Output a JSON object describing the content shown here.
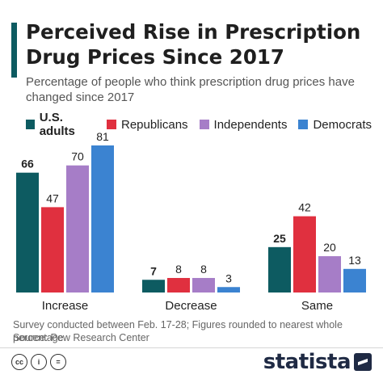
{
  "header": {
    "title": "Perceived Rise in Prescription Drug Prices Since 2017",
    "subtitle": "Percentage of people who think prescription drug prices have changed since 2017"
  },
  "colors": {
    "accent": "#0d5b61",
    "us_adults": "#0d5b61",
    "republicans": "#e0303f",
    "independents": "#a67dc7",
    "democrats": "#3b83d1",
    "brand": "#1f2a44"
  },
  "legend": [
    {
      "label": "U.S. adults",
      "color": "#0d5b61",
      "bold": true
    },
    {
      "label": "Republicans",
      "color": "#e0303f",
      "bold": false
    },
    {
      "label": "Independents",
      "color": "#a67dc7",
      "bold": false
    },
    {
      "label": "Democrats",
      "color": "#3b83d1",
      "bold": false
    }
  ],
  "chart_data": {
    "type": "bar",
    "title": "Perceived Rise in Prescription Drug Prices Since 2017",
    "subtitle": "Percentage of people who think prescription drug prices have changed since 2017",
    "categories": [
      "Increase",
      "Decrease",
      "Same"
    ],
    "series": [
      {
        "name": "U.S. adults",
        "values": [
          66,
          7,
          25
        ],
        "color": "#0d5b61",
        "bold_labels": true
      },
      {
        "name": "Republicans",
        "values": [
          47,
          8,
          42
        ],
        "color": "#e0303f"
      },
      {
        "name": "Independents",
        "values": [
          70,
          8,
          20
        ],
        "color": "#a67dc7"
      },
      {
        "name": "Democrats",
        "values": [
          81,
          3,
          13
        ],
        "color": "#3b83d1"
      }
    ],
    "ylim": [
      0,
      81
    ],
    "grid": false,
    "legend_position": "top-left"
  },
  "footer": {
    "note": "Survey conducted between Feb. 17-28; Figures rounded to nearest whole percentage",
    "source": "Source: Pew Research Center",
    "brand": "statista",
    "license_icons": [
      "cc-icon",
      "attribution-icon",
      "no-derivatives-icon"
    ],
    "license_glyphs": [
      "cc",
      "i",
      "="
    ]
  }
}
